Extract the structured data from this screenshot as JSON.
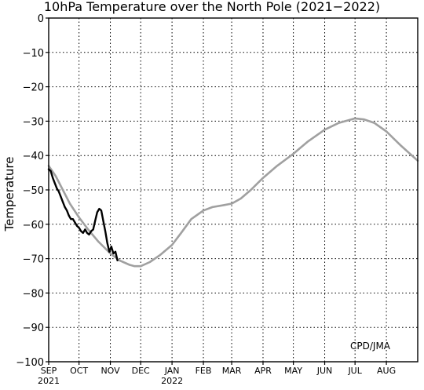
{
  "chart_data": {
    "type": "line",
    "title": "10hPa Temperature over the North Pole (2021−2022)",
    "ylabel": "Temperature",
    "xlabel": "",
    "ylim": [
      -100,
      0
    ],
    "yticks": [
      0,
      -10,
      -20,
      -30,
      -40,
      -50,
      -60,
      -70,
      -80,
      -90,
      -100
    ],
    "ytick_labels": [
      "0",
      "−10",
      "−20",
      "−30",
      "−40",
      "−50",
      "−60",
      "−70",
      "−80",
      "−90",
      "−100"
    ],
    "xlim": [
      "2021-09-01",
      "2022-09-01"
    ],
    "xticks": [
      {
        "date": "2021-09-01",
        "label": "SEP",
        "sublabel": "2021"
      },
      {
        "date": "2021-10-01",
        "label": "OCT",
        "sublabel": ""
      },
      {
        "date": "2021-11-01",
        "label": "NOV",
        "sublabel": ""
      },
      {
        "date": "2021-12-01",
        "label": "DEC",
        "sublabel": ""
      },
      {
        "date": "2022-01-01",
        "label": "JAN",
        "sublabel": "2022"
      },
      {
        "date": "2022-02-01",
        "label": "FEB",
        "sublabel": ""
      },
      {
        "date": "2022-03-01",
        "label": "MAR",
        "sublabel": ""
      },
      {
        "date": "2022-04-01",
        "label": "APR",
        "sublabel": ""
      },
      {
        "date": "2022-05-01",
        "label": "MAY",
        "sublabel": ""
      },
      {
        "date": "2022-06-01",
        "label": "JUN",
        "sublabel": ""
      },
      {
        "date": "2022-07-01",
        "label": "JUL",
        "sublabel": ""
      },
      {
        "date": "2022-08-01",
        "label": "AUG",
        "sublabel": ""
      }
    ],
    "grid": true,
    "annotation": "CPD/JMA",
    "series": [
      {
        "color": "#a0a0a0",
        "points": [
          [
            "2021-09-01",
            -43.0
          ],
          [
            "2021-09-08",
            -46.0
          ],
          [
            "2021-09-15",
            -50.0
          ],
          [
            "2021-09-22",
            -54.0
          ],
          [
            "2021-10-01",
            -58.0
          ],
          [
            "2021-10-10",
            -61.5
          ],
          [
            "2021-10-20",
            -65.0
          ],
          [
            "2021-11-01",
            -68.5
          ],
          [
            "2021-11-10",
            -70.5
          ],
          [
            "2021-11-20",
            -71.8
          ],
          [
            "2021-11-25",
            -72.2
          ],
          [
            "2021-12-01",
            -72.2
          ],
          [
            "2021-12-10",
            -71.0
          ],
          [
            "2021-12-20",
            -69.0
          ],
          [
            "2022-01-01",
            -66.0
          ],
          [
            "2022-01-10",
            -62.5
          ],
          [
            "2022-01-20",
            -58.5
          ],
          [
            "2022-02-01",
            -56.0
          ],
          [
            "2022-02-10",
            -55.0
          ],
          [
            "2022-02-20",
            -54.5
          ],
          [
            "2022-03-01",
            -54.0
          ],
          [
            "2022-03-10",
            -52.5
          ],
          [
            "2022-03-20",
            -50.0
          ],
          [
            "2022-04-01",
            -46.5
          ],
          [
            "2022-04-15",
            -43.0
          ],
          [
            "2022-05-01",
            -39.5
          ],
          [
            "2022-05-15",
            -36.0
          ],
          [
            "2022-06-01",
            -32.5
          ],
          [
            "2022-06-15",
            -30.5
          ],
          [
            "2022-07-01",
            -29.2
          ],
          [
            "2022-07-10",
            -29.5
          ],
          [
            "2022-07-20",
            -30.5
          ],
          [
            "2022-08-01",
            -33.0
          ],
          [
            "2022-08-15",
            -37.0
          ],
          [
            "2022-09-01",
            -41.5
          ]
        ]
      },
      {
        "color": "#000000",
        "points": [
          [
            "2021-09-01",
            -44.0
          ],
          [
            "2021-09-03",
            -44.5
          ],
          [
            "2021-09-05",
            -46.5
          ],
          [
            "2021-09-07",
            -48.0
          ],
          [
            "2021-09-09",
            -49.5
          ],
          [
            "2021-09-11",
            -50.5
          ],
          [
            "2021-09-13",
            -52.0
          ],
          [
            "2021-09-15",
            -53.5
          ],
          [
            "2021-09-17",
            -55.0
          ],
          [
            "2021-09-19",
            -56.0
          ],
          [
            "2021-09-21",
            -57.5
          ],
          [
            "2021-09-23",
            -58.5
          ],
          [
            "2021-09-25",
            -58.5
          ],
          [
            "2021-09-27",
            -59.5
          ],
          [
            "2021-09-29",
            -60.5
          ],
          [
            "2021-10-01",
            -61.0
          ],
          [
            "2021-10-03",
            -62.0
          ],
          [
            "2021-10-05",
            -62.5
          ],
          [
            "2021-10-07",
            -61.5
          ],
          [
            "2021-10-09",
            -62.5
          ],
          [
            "2021-10-11",
            -63.0
          ],
          [
            "2021-10-13",
            -62.0
          ],
          [
            "2021-10-15",
            -61.5
          ],
          [
            "2021-10-17",
            -59.0
          ],
          [
            "2021-10-19",
            -56.5
          ],
          [
            "2021-10-21",
            -55.5
          ],
          [
            "2021-10-23",
            -56.0
          ],
          [
            "2021-10-25",
            -59.0
          ],
          [
            "2021-10-27",
            -62.0
          ],
          [
            "2021-10-29",
            -65.5
          ],
          [
            "2021-10-31",
            -68.0
          ],
          [
            "2021-11-02",
            -66.5
          ],
          [
            "2021-11-04",
            -68.5
          ],
          [
            "2021-11-06",
            -68.0
          ],
          [
            "2021-11-08",
            -70.5
          ]
        ]
      }
    ]
  }
}
